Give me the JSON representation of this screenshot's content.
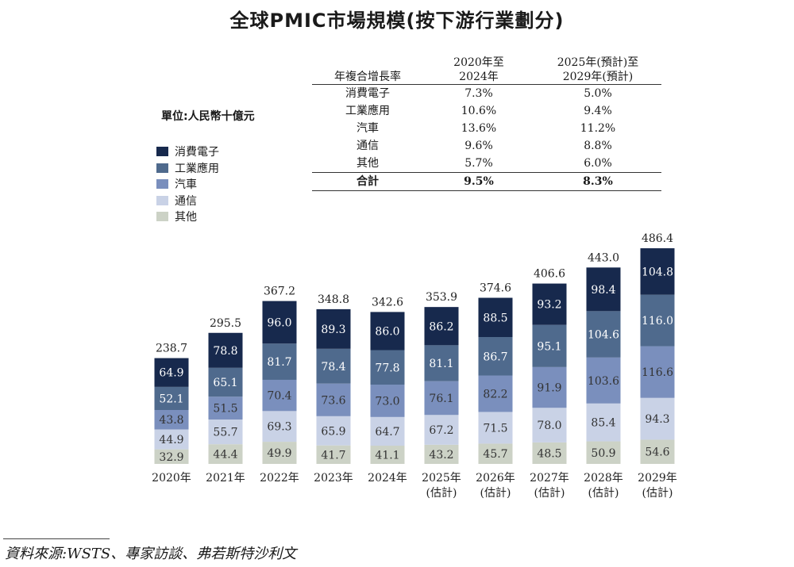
{
  "title": "全球PMIC市場規模(按下游行業劃分)",
  "unit_label": "單位:人民幣十億元",
  "legend": [
    {
      "label": "消費電子",
      "color": "#17294d"
    },
    {
      "label": "工業應用",
      "color": "#4f6a8d"
    },
    {
      "label": "汽車",
      "color": "#7a8fbd"
    },
    {
      "label": "通信",
      "color": "#c9d2e6"
    },
    {
      "label": "其他",
      "color": "#ccd2c6"
    }
  ],
  "cagr_table": {
    "header": [
      "年複合增長率",
      "2020年至\n2024年",
      "2025年(預計)至\n2029年(預計)"
    ],
    "rows": [
      [
        "消費電子",
        "7.3%",
        "5.0%"
      ],
      [
        "工業應用",
        "10.6%",
        "9.4%"
      ],
      [
        "汽車",
        "13.6%",
        "11.2%"
      ],
      [
        "通信",
        "9.6%",
        "8.8%"
      ],
      [
        "其他",
        "5.7%",
        "6.0%"
      ]
    ],
    "total": [
      "合計",
      "9.5%",
      "8.3%"
    ]
  },
  "chart_data": {
    "type": "bar",
    "stacked": true,
    "categories": [
      "2020年",
      "2021年",
      "2022年",
      "2023年",
      "2024年",
      "2025年\n(估計)",
      "2026年\n(估計)",
      "2027年\n(估計)",
      "2028年\n(估計)",
      "2029年\n(估計)"
    ],
    "series": [
      {
        "name": "其他",
        "values": [
          32.9,
          44.4,
          49.9,
          41.7,
          41.1,
          43.2,
          45.7,
          48.5,
          50.9,
          54.6
        ]
      },
      {
        "name": "通信",
        "values": [
          44.9,
          55.7,
          69.3,
          65.9,
          64.7,
          67.2,
          71.5,
          78.0,
          85.4,
          94.3
        ]
      },
      {
        "name": "汽車",
        "values": [
          43.8,
          51.5,
          70.4,
          73.6,
          73.0,
          76.1,
          82.2,
          91.9,
          103.6,
          116.6
        ]
      },
      {
        "name": "工業應用",
        "values": [
          52.1,
          65.1,
          81.7,
          78.4,
          77.8,
          81.1,
          86.7,
          95.1,
          104.6,
          116.0
        ]
      },
      {
        "name": "消費電子",
        "values": [
          64.9,
          78.8,
          96.0,
          89.3,
          86.0,
          86.2,
          88.5,
          93.2,
          98.4,
          104.8
        ]
      }
    ],
    "totals": [
      238.7,
      295.5,
      367.2,
      348.8,
      342.6,
      353.9,
      374.6,
      406.6,
      443.0,
      486.4
    ],
    "label_colors": [
      "#333333",
      "#333333",
      "#333333",
      "#ffffff",
      "#ffffff"
    ],
    "ylim": [
      0,
      500
    ],
    "title": "",
    "xlabel": "",
    "ylabel": ""
  },
  "source": "資料來源:WSTS、專家訪談、弗若斯特沙利文"
}
